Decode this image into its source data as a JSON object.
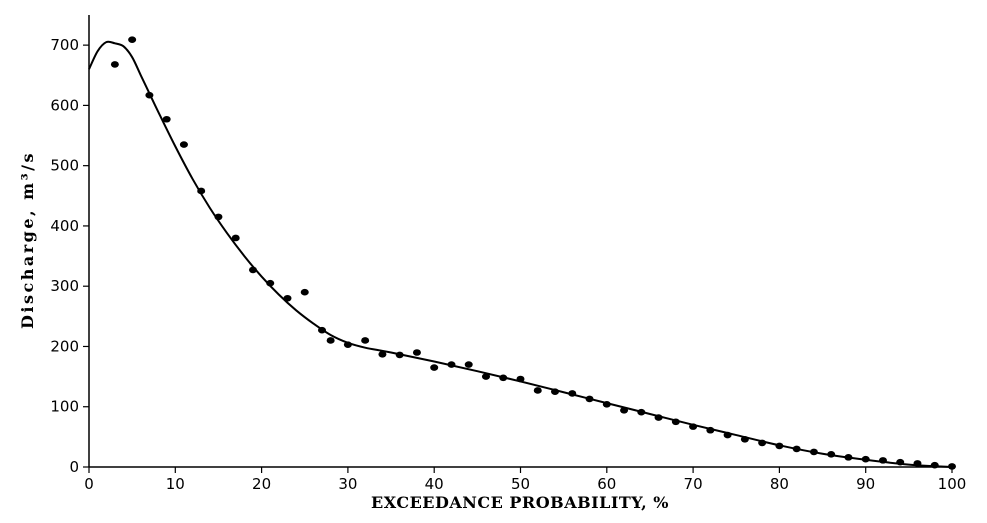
{
  "chart_data": {
    "type": "scatter",
    "title": "",
    "xlabel": "EXCEEDANCE PROBABILITY, %",
    "ylabel": "Discharge, m³/s",
    "xlim": [
      0,
      100
    ],
    "ylim": [
      0,
      750
    ],
    "xticks": [
      0,
      10,
      20,
      30,
      40,
      50,
      60,
      70,
      80,
      90,
      100
    ],
    "yticks": [
      0,
      100,
      200,
      300,
      400,
      500,
      600,
      700
    ],
    "grid": false,
    "series": [
      {
        "kind": "points",
        "x": [
          3,
          5,
          7,
          9,
          11,
          13,
          15,
          17,
          19,
          21,
          23,
          25,
          27,
          28,
          30,
          32,
          34,
          36,
          38,
          40,
          42,
          44,
          46,
          48,
          50,
          52,
          54,
          56,
          58,
          60,
          62,
          64,
          66,
          68,
          70,
          72,
          74,
          76,
          78,
          80,
          82,
          84,
          86,
          88,
          90,
          92,
          94,
          96,
          98,
          100
        ],
        "y": [
          668,
          709,
          617,
          577,
          535,
          458,
          415,
          380,
          327,
          305,
          280,
          290,
          227,
          210,
          203,
          210,
          187,
          186,
          190,
          165,
          170,
          170,
          150,
          148,
          146,
          127,
          125,
          122,
          113,
          104,
          94,
          91,
          82,
          75,
          67,
          61,
          53,
          46,
          40,
          35,
          30,
          25,
          21,
          16,
          13,
          11,
          8,
          6,
          3,
          1
        ]
      },
      {
        "kind": "curve",
        "x": [
          0,
          1,
          2,
          3,
          4,
          5,
          6,
          7,
          8,
          10,
          12,
          14,
          16,
          18,
          20,
          22,
          24,
          26,
          28,
          30,
          32,
          35,
          40,
          45,
          50,
          55,
          60,
          65,
          70,
          75,
          80,
          85,
          90,
          95,
          100
        ],
        "y": [
          660,
          690,
          705,
          703,
          698,
          680,
          650,
          620,
          590,
          532,
          478,
          430,
          388,
          350,
          316,
          286,
          260,
          238,
          219,
          206,
          198,
          190,
          175,
          159,
          142,
          124,
          106,
          88,
          70,
          53,
          36,
          22,
          12,
          4,
          0
        ]
      }
    ]
  }
}
